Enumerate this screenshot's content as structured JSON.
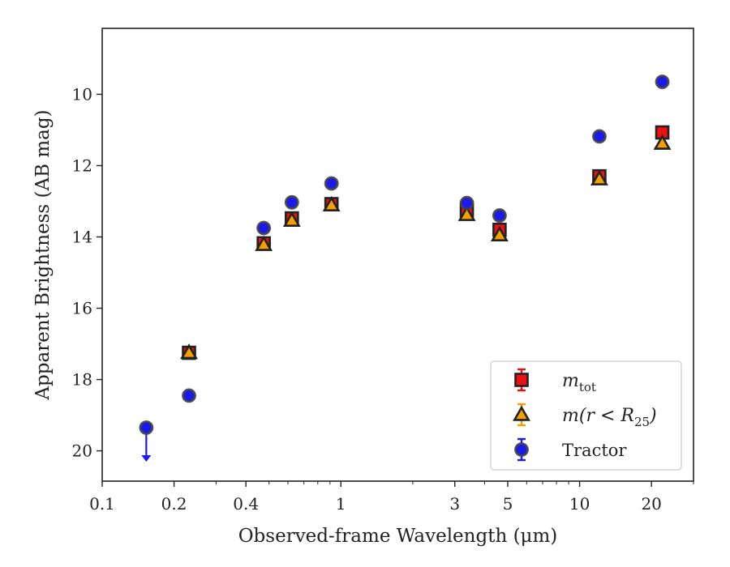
{
  "chart_data": {
    "type": "scatter",
    "xscale": "log",
    "yaxis_inverted": true,
    "xlim": [
      0.1,
      30
    ],
    "ylim": [
      20.85,
      8.15
    ],
    "xlabel": "Observed-frame Wavelength (μm)",
    "ylabel": "Apparent Brightness (AB mag)",
    "xticks": [
      {
        "value": 0.1,
        "label": "0.1"
      },
      {
        "value": 0.2,
        "label": "0.2"
      },
      {
        "value": 0.4,
        "label": "0.4"
      },
      {
        "value": 1,
        "label": "1"
      },
      {
        "value": 3,
        "label": "3"
      },
      {
        "value": 5,
        "label": "5"
      },
      {
        "value": 10,
        "label": "10"
      },
      {
        "value": 20,
        "label": "20"
      }
    ],
    "yticks": [
      {
        "value": 10,
        "label": "10"
      },
      {
        "value": 12,
        "label": "12"
      },
      {
        "value": 14,
        "label": "14"
      },
      {
        "value": 16,
        "label": "16"
      },
      {
        "value": 18,
        "label": "18"
      },
      {
        "value": 20,
        "label": "20"
      }
    ],
    "legend": {
      "placement": "lower-right",
      "entries": [
        {
          "series": "mtot",
          "base": "m",
          "subscript": "tot"
        },
        {
          "series": "mr25",
          "base": "m(r < R",
          "subscript": "25",
          "suffix": ")"
        },
        {
          "series": "tractor",
          "text": "Tractor"
        }
      ]
    },
    "series": [
      {
        "id": "mtot",
        "marker": "square",
        "color": "#ee1111",
        "edge": "#222222",
        "errorbar_color": "#ee1111",
        "points": [
          {
            "x": 0.231,
            "y": 17.25
          },
          {
            "x": 0.475,
            "y": 14.18
          },
          {
            "x": 0.623,
            "y": 13.48
          },
          {
            "x": 0.913,
            "y": 13.08
          },
          {
            "x": 3.37,
            "y": 13.25
          },
          {
            "x": 4.62,
            "y": 13.8
          },
          {
            "x": 12.1,
            "y": 12.3
          },
          {
            "x": 22.2,
            "y": 11.07
          }
        ]
      },
      {
        "id": "mr25",
        "marker": "triangle",
        "color": "#f5a000",
        "edge": "#222222",
        "errorbar_color": "#f5a000",
        "points": [
          {
            "x": 0.231,
            "y": 17.25
          },
          {
            "x": 0.475,
            "y": 14.22
          },
          {
            "x": 0.623,
            "y": 13.54
          },
          {
            "x": 0.913,
            "y": 13.11
          },
          {
            "x": 3.37,
            "y": 13.38
          },
          {
            "x": 4.62,
            "y": 13.95
          },
          {
            "x": 12.1,
            "y": 12.38
          },
          {
            "x": 22.2,
            "y": 11.38
          }
        ]
      },
      {
        "id": "tractor",
        "marker": "circle",
        "color": "#1a1aee",
        "edge": "#444444",
        "errorbar_color": "#1a1aee",
        "points": [
          {
            "x": 0.153,
            "y": 19.35,
            "upper_limit": true
          },
          {
            "x": 0.231,
            "y": 18.45
          },
          {
            "x": 0.475,
            "y": 13.75
          },
          {
            "x": 0.623,
            "y": 13.03
          },
          {
            "x": 0.913,
            "y": 12.5
          },
          {
            "x": 3.37,
            "y": 13.05
          },
          {
            "x": 4.62,
            "y": 13.4
          },
          {
            "x": 12.1,
            "y": 11.18
          },
          {
            "x": 22.2,
            "y": 9.65
          }
        ]
      }
    ]
  }
}
